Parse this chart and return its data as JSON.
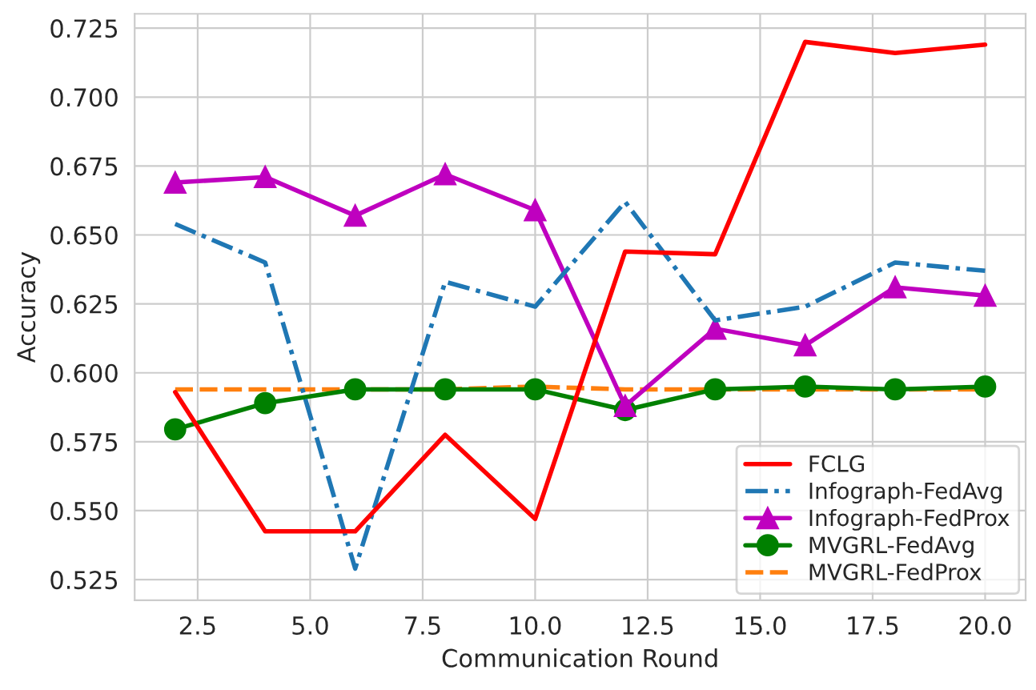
{
  "chart_data": {
    "type": "line",
    "xlabel": "Communication Round",
    "ylabel": "Accuracy",
    "x": [
      2,
      4,
      6,
      8,
      10,
      12,
      14,
      16,
      18,
      20
    ],
    "xlim": [
      1.1,
      20.9
    ],
    "xticks": [
      2.5,
      {
        "value": 5,
        "label": "5.0"
      },
      7.5,
      {
        "value": 10,
        "label": "10.0"
      },
      12.5,
      {
        "value": 15,
        "label": "15.0"
      },
      17.5,
      {
        "value": 20,
        "label": "20.0"
      }
    ],
    "ylim": [
      0.5175,
      0.7302
    ],
    "yticks": [
      0.525,
      {
        "value": 0.55,
        "label": "0.550"
      },
      0.575,
      {
        "value": 0.6,
        "label": "0.600"
      },
      0.625,
      {
        "value": 0.65,
        "label": "0.650"
      },
      0.675,
      {
        "value": 0.7,
        "label": "0.700"
      },
      0.725
    ],
    "grid": true,
    "legend": "bottom right",
    "series": [
      {
        "name": "FCLG",
        "color": "#ff0000",
        "line_style": "solid",
        "marker": "none",
        "values": [
          0.593,
          0.5425,
          0.5425,
          0.5775,
          0.547,
          0.644,
          0.643,
          0.72,
          0.716,
          0.719
        ]
      },
      {
        "name": "Infograph-FedAvg",
        "color": "#1f77b4",
        "line_style": "dashdot",
        "marker": "none",
        "values": [
          0.654,
          0.64,
          0.529,
          0.633,
          0.624,
          0.662,
          0.619,
          0.624,
          0.64,
          0.637
        ]
      },
      {
        "name": "Infograph-FedProx",
        "color": "#bf00bf",
        "line_style": "solid",
        "marker": "triangle",
        "values": [
          0.669,
          0.671,
          0.657,
          0.672,
          0.659,
          0.588,
          0.616,
          0.61,
          0.631,
          0.628
        ]
      },
      {
        "name": "MVGRL-FedAvg",
        "color": "#008000",
        "line_style": "solid",
        "marker": "circle",
        "values": [
          0.5795,
          0.589,
          0.594,
          0.594,
          0.594,
          0.5865,
          0.594,
          0.595,
          0.594,
          0.595
        ]
      },
      {
        "name": "MVGRL-FedProx",
        "color": "#ff7f0e",
        "line_style": "dashed",
        "marker": "none",
        "values": [
          0.594,
          0.594,
          0.594,
          0.594,
          0.595,
          0.594,
          0.594,
          0.594,
          0.594,
          0.594
        ]
      }
    ]
  }
}
